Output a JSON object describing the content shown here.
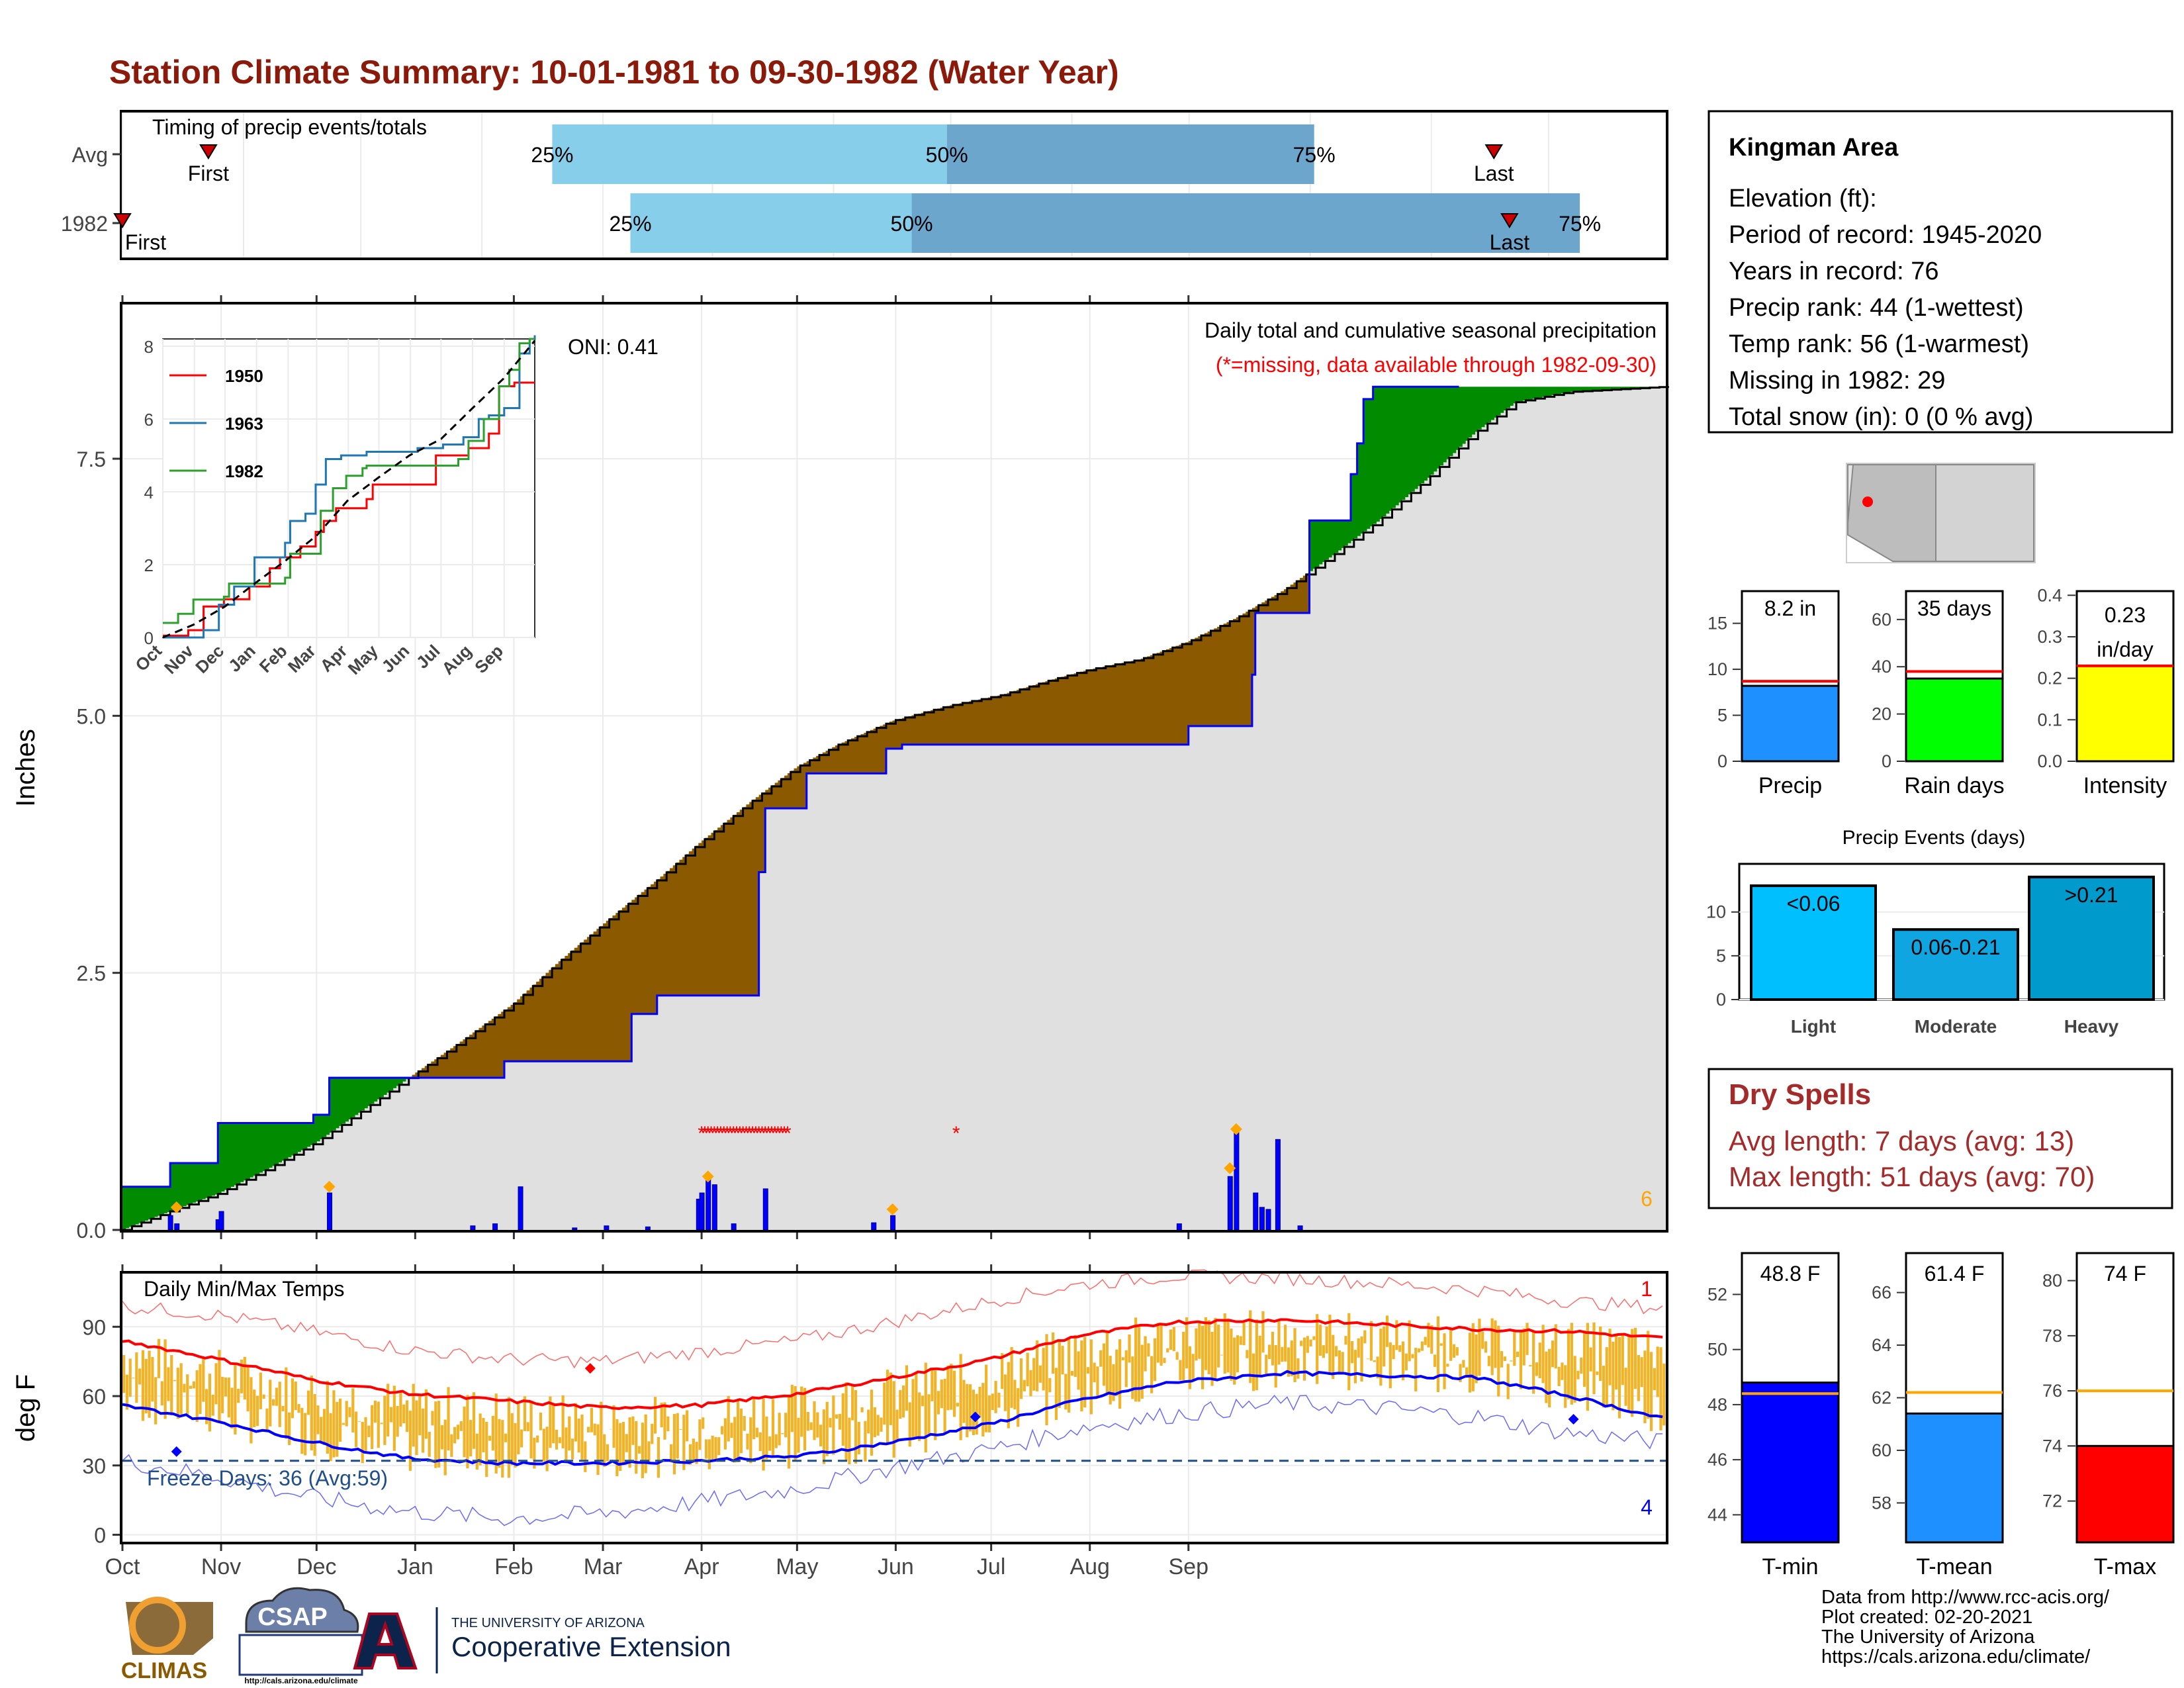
{
  "title": "Station Climate Summary: 10-01-1981 to 09-30-1982 (Water Year)",
  "colors": {
    "title": "#8b1a0a",
    "light_blue": "#87ceeb",
    "mid_blue": "#6ca6cd",
    "brown": "#8b5a00",
    "green": "#008b00",
    "grey_fill": "#e0e0e0",
    "bar_blue": "#0000ff",
    "temp_bar": "#f0b429",
    "red": "#ff0000",
    "blue": "#0000ff",
    "dry_spell": "#a52a2a",
    "freeze_line": "#1f4e8c"
  },
  "timing": {
    "label": "Timing of precip events/totals",
    "rows": [
      {
        "name": "Avg",
        "first_label": "First",
        "last_label": "Last",
        "first_day": 22,
        "last_day": 351,
        "p25": 110,
        "p50": 211,
        "p75": 305,
        "p25_label": "25%",
        "p50_label": "50%",
        "p75_label": "75%"
      },
      {
        "name": "1982",
        "first_label": "First",
        "last_label": "Last",
        "first_day": 0,
        "last_day": 355,
        "p25": 130,
        "p50": 202,
        "p75": 373,
        "p25_label": "25%",
        "p50_label": "50%",
        "p75_label": "75%"
      }
    ]
  },
  "precip_panel": {
    "ylabel": "Inches",
    "subtitle": "Daily total and cumulative seasonal precipitation",
    "missing_note": "(*=missing, data available through 1982-09-30)",
    "oni": "ONI: 0.41",
    "max_daily_label": "6",
    "yticks": [
      "0.0",
      "2.5",
      "5.0",
      "7.5"
    ],
    "ylim": [
      0,
      9.0
    ],
    "year_cum_steps": [
      [
        0,
        0.42
      ],
      [
        15,
        0.42
      ],
      [
        15,
        0.65
      ],
      [
        30,
        0.65
      ],
      [
        30,
        1.04
      ],
      [
        60,
        1.04
      ],
      [
        60,
        1.12
      ],
      [
        65,
        1.12
      ],
      [
        65,
        1.48
      ],
      [
        120,
        1.48
      ],
      [
        120,
        1.64
      ],
      [
        160,
        1.64
      ],
      [
        160,
        2.1
      ],
      [
        168,
        2.1
      ],
      [
        168,
        2.28
      ],
      [
        196,
        2.28
      ],
      [
        196,
        2.28
      ],
      [
        200,
        2.28
      ],
      [
        200,
        3.0
      ],
      [
        200,
        3.48
      ],
      [
        202,
        3.48
      ],
      [
        202,
        4.1
      ],
      [
        215,
        4.1
      ],
      [
        215,
        4.44
      ],
      [
        240,
        4.44
      ],
      [
        240,
        4.68
      ],
      [
        245,
        4.68
      ],
      [
        245,
        4.72
      ],
      [
        335,
        4.72
      ],
      [
        335,
        4.9
      ],
      [
        355,
        4.9
      ],
      [
        355,
        5.4
      ],
      [
        356,
        5.4
      ],
      [
        356,
        6.0
      ],
      [
        373,
        6.0
      ],
      [
        373,
        6.9
      ],
      [
        386,
        6.9
      ],
      [
        386,
        7.35
      ],
      [
        388,
        7.35
      ],
      [
        388,
        7.65
      ],
      [
        390,
        7.65
      ],
      [
        390,
        8.08
      ],
      [
        393,
        8.08
      ],
      [
        393,
        8.2
      ],
      [
        420,
        8.2
      ]
    ],
    "avg_cum_points": [
      [
        0,
        0.0
      ],
      [
        15,
        0.18
      ],
      [
        30,
        0.35
      ],
      [
        45,
        0.58
      ],
      [
        61,
        0.85
      ],
      [
        75,
        1.15
      ],
      [
        92,
        1.52
      ],
      [
        106,
        1.82
      ],
      [
        123,
        2.2
      ],
      [
        137,
        2.6
      ],
      [
        153,
        3.02
      ],
      [
        170,
        3.45
      ],
      [
        181,
        3.75
      ],
      [
        197,
        4.15
      ],
      [
        212,
        4.5
      ],
      [
        225,
        4.72
      ],
      [
        242,
        4.95
      ],
      [
        260,
        5.1
      ],
      [
        276,
        5.2
      ],
      [
        292,
        5.35
      ],
      [
        304,
        5.45
      ],
      [
        320,
        5.55
      ],
      [
        335,
        5.72
      ],
      [
        350,
        5.95
      ],
      [
        365,
        6.22
      ],
      [
        380,
        6.55
      ],
      [
        395,
        6.9
      ],
      [
        410,
        7.3
      ],
      [
        425,
        7.75
      ],
      [
        438,
        8.05
      ],
      [
        455,
        8.15
      ],
      [
        485,
        8.2
      ]
    ],
    "daily_bars": [
      [
        15,
        0.14
      ],
      [
        17,
        0.06
      ],
      [
        30,
        0.1
      ],
      [
        31,
        0.18
      ],
      [
        65,
        0.36
      ],
      [
        110,
        0.04
      ],
      [
        117,
        0.06
      ],
      [
        125,
        0.42
      ],
      [
        142,
        0.02
      ],
      [
        152,
        0.04
      ],
      [
        165,
        0.03
      ],
      [
        181,
        0.3
      ],
      [
        182,
        0.36
      ],
      [
        184,
        0.5
      ],
      [
        186,
        0.44
      ],
      [
        192,
        0.06
      ],
      [
        202,
        0.4
      ],
      [
        236,
        0.07
      ],
      [
        242,
        0.14
      ],
      [
        332,
        0.06
      ],
      [
        348,
        0.52
      ],
      [
        350,
        0.96
      ],
      [
        356,
        0.36
      ],
      [
        358,
        0.22
      ],
      [
        360,
        0.2
      ],
      [
        363,
        0.88
      ],
      [
        370,
        0.04
      ]
    ],
    "missing_days": [
      182,
      183,
      184,
      185,
      186,
      187,
      188,
      189,
      190,
      191,
      192,
      193,
      194,
      195,
      196,
      197,
      198,
      199,
      200,
      201,
      202,
      203,
      204,
      205,
      206,
      207,
      208,
      209,
      262
    ],
    "event_markers": [
      [
        17,
        0.22
      ],
      [
        65,
        0.42
      ],
      [
        184,
        0.52
      ],
      [
        242,
        0.2
      ],
      [
        348,
        0.6
      ],
      [
        350,
        0.98
      ]
    ],
    "inset": {
      "yticks": [
        "0",
        "2",
        "4",
        "6",
        "8"
      ],
      "months": [
        "Oct",
        "Nov",
        "Dec",
        "Jan",
        "Feb",
        "Mar",
        "Apr",
        "May",
        "Jun",
        "Jul",
        "Aug",
        "Sep"
      ],
      "legend": [
        {
          "name": "1950",
          "color": "#ff0000"
        },
        {
          "name": "1963",
          "color": "#1f77b4"
        },
        {
          "name": "1982",
          "color": "#2ca02c"
        }
      ],
      "series": [
        {
          "name": "1950",
          "color": "#ff0000",
          "points": [
            [
              0,
              0.05
            ],
            [
              25,
              0.2
            ],
            [
              40,
              0.85
            ],
            [
              60,
              1.05
            ],
            [
              85,
              1.4
            ],
            [
              105,
              1.9
            ],
            [
              115,
              2.2
            ],
            [
              135,
              2.5
            ],
            [
              150,
              2.9
            ],
            [
              158,
              3.2
            ],
            [
              170,
              3.55
            ],
            [
              200,
              3.8
            ],
            [
              206,
              4.2
            ],
            [
              220,
              4.2
            ],
            [
              265,
              4.2
            ],
            [
              268,
              5.0
            ],
            [
              290,
              5.0
            ],
            [
              300,
              5.2
            ],
            [
              320,
              5.6
            ],
            [
              330,
              6.9
            ],
            [
              345,
              7.0
            ],
            [
              365,
              7.0
            ]
          ]
        },
        {
          "name": "1963",
          "color": "#1f77b4",
          "points": [
            [
              0,
              0.0
            ],
            [
              40,
              0.2
            ],
            [
              55,
              0.9
            ],
            [
              70,
              1.4
            ],
            [
              90,
              2.2
            ],
            [
              120,
              2.6
            ],
            [
              125,
              3.2
            ],
            [
              140,
              3.4
            ],
            [
              150,
              4.2
            ],
            [
              160,
              4.9
            ],
            [
              175,
              5.0
            ],
            [
              200,
              5.1
            ],
            [
              250,
              5.2
            ],
            [
              275,
              5.3
            ],
            [
              295,
              5.5
            ],
            [
              310,
              6.0
            ],
            [
              320,
              6.1
            ],
            [
              335,
              6.3
            ],
            [
              350,
              7.8
            ],
            [
              360,
              8.2
            ],
            [
              365,
              8.3
            ]
          ]
        },
        {
          "name": "1982",
          "color": "#2ca02c",
          "points": [
            [
              0,
              0.4
            ],
            [
              15,
              0.65
            ],
            [
              30,
              1.04
            ],
            [
              60,
              1.12
            ],
            [
              65,
              1.48
            ],
            [
              120,
              1.64
            ],
            [
              125,
              2.3
            ],
            [
              152,
              2.3
            ],
            [
              155,
              3.48
            ],
            [
              167,
              4.1
            ],
            [
              180,
              4.44
            ],
            [
              196,
              4.65
            ],
            [
              200,
              4.72
            ],
            [
              280,
              4.72
            ],
            [
              290,
              4.9
            ],
            [
              300,
              5.4
            ],
            [
              315,
              6.0
            ],
            [
              330,
              6.9
            ],
            [
              340,
              7.35
            ],
            [
              350,
              8.08
            ],
            [
              360,
              8.2
            ],
            [
              365,
              8.2
            ]
          ]
        }
      ],
      "avg_points": [
        [
          0,
          0.0
        ],
        [
          30,
          0.35
        ],
        [
          61,
          0.85
        ],
        [
          92,
          1.52
        ],
        [
          120,
          2.1
        ],
        [
          151,
          2.8
        ],
        [
          181,
          3.75
        ],
        [
          212,
          4.4
        ],
        [
          242,
          5.0
        ],
        [
          273,
          5.45
        ],
        [
          304,
          6.3
        ],
        [
          334,
          7.1
        ],
        [
          365,
          8.15
        ]
      ],
      "ylim": [
        0,
        8.2
      ]
    }
  },
  "temp_panel": {
    "ylabel": "deg F",
    "label": "Daily Min/Max Temps",
    "freeze_label": "Freeze Days: 36 (Avg:59)",
    "freeze_temp": 32,
    "count_top": "1",
    "count_bottom": "4",
    "yticks": [
      "0",
      "30",
      "60",
      "90"
    ],
    "ylim": [
      -3,
      113
    ],
    "avg_max": [
      [
        0,
        84
      ],
      [
        30,
        76
      ],
      [
        60,
        67
      ],
      [
        90,
        61
      ],
      [
        120,
        58
      ],
      [
        150,
        55
      ],
      [
        181,
        56
      ],
      [
        212,
        61
      ],
      [
        242,
        68
      ],
      [
        273,
        76
      ],
      [
        300,
        86
      ],
      [
        330,
        92
      ],
      [
        365,
        93
      ],
      [
        395,
        91
      ],
      [
        425,
        89
      ],
      [
        455,
        88
      ],
      [
        485,
        85
      ]
    ],
    "avg_min": [
      [
        0,
        56
      ],
      [
        30,
        49
      ],
      [
        60,
        40
      ],
      [
        90,
        33
      ],
      [
        120,
        31
      ],
      [
        150,
        31
      ],
      [
        181,
        32
      ],
      [
        212,
        34
      ],
      [
        242,
        40
      ],
      [
        273,
        48
      ],
      [
        300,
        58
      ],
      [
        330,
        66
      ],
      [
        365,
        70
      ],
      [
        395,
        69
      ],
      [
        425,
        68
      ],
      [
        455,
        60
      ],
      [
        485,
        50
      ]
    ],
    "record_max": [
      [
        0,
        99
      ],
      [
        30,
        95
      ],
      [
        60,
        88
      ],
      [
        90,
        80
      ],
      [
        120,
        76
      ],
      [
        150,
        75
      ],
      [
        181,
        79
      ],
      [
        212,
        84
      ],
      [
        242,
        92
      ],
      [
        273,
        101
      ],
      [
        300,
        108
      ],
      [
        330,
        112
      ],
      [
        365,
        111
      ],
      [
        395,
        109
      ],
      [
        425,
        106
      ],
      [
        455,
        101
      ],
      [
        485,
        98
      ]
    ],
    "record_min": [
      [
        0,
        32
      ],
      [
        30,
        25
      ],
      [
        60,
        16
      ],
      [
        90,
        10
      ],
      [
        120,
        7
      ],
      [
        150,
        9
      ],
      [
        181,
        14
      ],
      [
        212,
        20
      ],
      [
        242,
        29
      ],
      [
        273,
        37
      ],
      [
        300,
        46
      ],
      [
        330,
        52
      ],
      [
        365,
        57
      ],
      [
        395,
        55
      ],
      [
        425,
        51
      ],
      [
        455,
        44
      ],
      [
        485,
        40
      ]
    ],
    "markers": [
      {
        "day": 17,
        "temp": 36,
        "color": "#0000ff"
      },
      {
        "day": 147,
        "temp": 72,
        "color": "#ff0000"
      },
      {
        "day": 268,
        "temp": 51,
        "color": "#0000ff"
      },
      {
        "day": 456,
        "temp": 50,
        "color": "#0000ff"
      }
    ]
  },
  "months": [
    "Oct",
    "Nov",
    "Dec",
    "Jan",
    "Feb",
    "Mar",
    "Apr",
    "May",
    "Jun",
    "Jul",
    "Aug",
    "Sep"
  ],
  "station": {
    "name": "Kingman Area",
    "lines": [
      "Elevation (ft):",
      "Period of record: 1945-2020",
      "Years in record: 76",
      "Precip rank: 44 (1-wettest)",
      "Temp rank: 56 (1-warmest)",
      "Missing in 1982: 29",
      "Total snow (in): 0 (0 % avg)"
    ]
  },
  "summary_bars": [
    {
      "name": "Precip",
      "value": 8.2,
      "avg": 8.7,
      "label": "8.2 in",
      "ymax": 18.5,
      "yticks": [
        "0",
        "5",
        "10",
        "15"
      ],
      "color": "#1e90ff"
    },
    {
      "name": "Rain days",
      "value": 35,
      "avg": 38,
      "label": "35 days",
      "ymax": 72,
      "yticks": [
        "0",
        "20",
        "40",
        "60"
      ],
      "color": "#00ff00"
    },
    {
      "name": "Intensity",
      "value": 0.23,
      "avg": 0.23,
      "label": "0.23 in/day",
      "ymax": 0.41,
      "yticks": [
        "0.0",
        "0.1",
        "0.2",
        "0.3",
        "0.4"
      ],
      "color": "#ffff00"
    }
  ],
  "events": {
    "title": "Precip Events (days)",
    "categories": [
      "Light",
      "Moderate",
      "Heavy"
    ],
    "values": [
      13,
      8,
      14
    ],
    "labels": [
      "<0.06",
      "0.06-0.21",
      ">0.21"
    ],
    "yticks": [
      "0",
      "5",
      "10"
    ],
    "ymax": 15.5,
    "colors": [
      "#00bfff",
      "#0ea5e0",
      "#009acd"
    ]
  },
  "dry_spells": {
    "title": "Dry Spells",
    "avg": "Avg length: 7 days (avg: 13)",
    "max": "Max length: 51 days (avg: 70)"
  },
  "temp_bars": [
    {
      "name": "T-min",
      "value": 48.8,
      "avg": 48.4,
      "label": "48.8 F",
      "ymin": 43,
      "ymax": 53.5,
      "ticks": [
        44,
        46,
        48,
        50,
        52
      ],
      "color": "#0000ff"
    },
    {
      "name": "T-mean",
      "value": 61.4,
      "avg": 62.2,
      "label": "61.4 F",
      "ymin": 56.5,
      "ymax": 67.5,
      "ticks": [
        58,
        60,
        62,
        64,
        66
      ],
      "color": "#1e90ff"
    },
    {
      "name": "T-max",
      "value": 74,
      "avg": 76,
      "label": "74 F",
      "ymin": 70.5,
      "ymax": 81,
      "ticks": [
        72,
        74,
        76,
        78,
        80
      ],
      "color": "#ff0000"
    }
  ],
  "footer": {
    "lines": [
      "Data from http://www.rcc-acis.org/",
      "Plot created: 02-20-2021",
      "The University of Arizona",
      "https://cals.arizona.edu/climate/"
    ],
    "logo_climas": "CLIMAS",
    "logo_csap": "CSAP",
    "logo_csap_url": "http://cals.arizona.edu/climate",
    "ua_line1": "THE UNIVERSITY OF ARIZONA",
    "ua_line2": "Cooperative Extension"
  }
}
